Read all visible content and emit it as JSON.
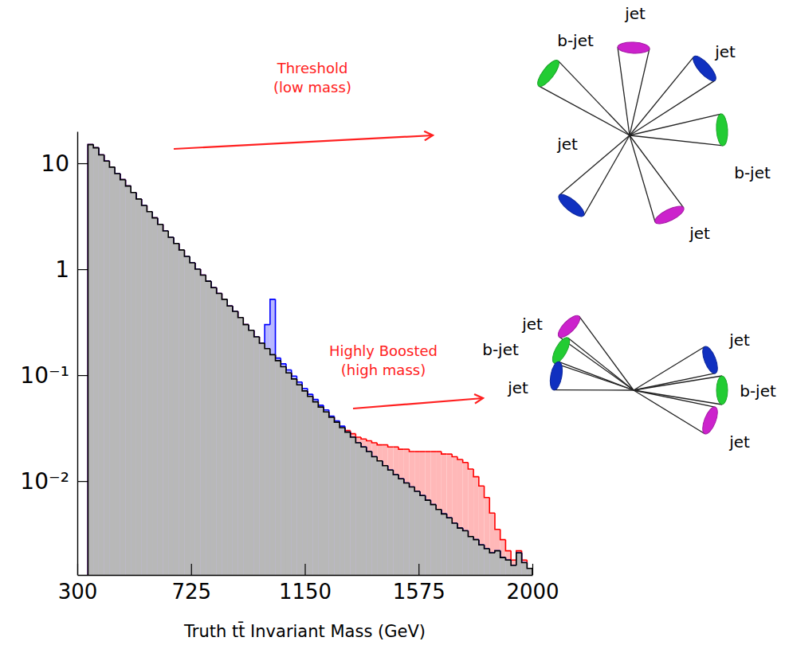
{
  "chart_data": {
    "type": "histogram",
    "x_label": "Truth tt̄ Invariant Mass (GeV)",
    "log": "y",
    "grid": false,
    "xlim": [
      300,
      2000
    ],
    "xticks": [
      300,
      725,
      1150,
      1575,
      2000
    ],
    "ylim": [
      0.0013,
      20
    ],
    "yticks": [
      {
        "value": 0.01,
        "label": "10⁻²"
      },
      {
        "value": 0.1,
        "label": "10⁻¹"
      },
      1,
      10
    ],
    "bins": [
      340,
      360,
      380,
      400,
      420,
      440,
      460,
      480,
      500,
      520,
      540,
      560,
      580,
      600,
      620,
      640,
      660,
      680,
      700,
      720,
      740,
      760,
      780,
      800,
      820,
      840,
      860,
      880,
      900,
      920,
      940,
      960,
      980,
      1000,
      1020,
      1040,
      1060,
      1080,
      1100,
      1120,
      1140,
      1160,
      1180,
      1200,
      1220,
      1240,
      1260,
      1280,
      1300,
      1320,
      1340,
      1360,
      1380,
      1400,
      1420,
      1440,
      1460,
      1480,
      1500,
      1520,
      1540,
      1560,
      1580,
      1600,
      1620,
      1640,
      1660,
      1680,
      1700,
      1720,
      1740,
      1760,
      1780,
      1800,
      1820,
      1840,
      1860,
      1880,
      1900,
      1920,
      1940,
      1960,
      1980,
      2000
    ],
    "series": [
      {
        "color": "#000000",
        "values": [
          15,
          14,
          12,
          10.5,
          9.2,
          8.0,
          7.0,
          6.1,
          5.3,
          4.6,
          4.0,
          3.5,
          3.05,
          2.65,
          2.3,
          2.0,
          1.75,
          1.52,
          1.32,
          1.15,
          1.0,
          0.88,
          0.77,
          0.67,
          0.59,
          0.52,
          0.45,
          0.4,
          0.35,
          0.3,
          0.265,
          0.23,
          0.2,
          0.178,
          0.156,
          0.137,
          0.12,
          0.105,
          0.092,
          0.081,
          0.071,
          0.063,
          0.056,
          0.05,
          0.045,
          0.04,
          0.036,
          0.032,
          0.029,
          0.026,
          0.023,
          0.021,
          0.019,
          0.017,
          0.0155,
          0.014,
          0.0127,
          0.0115,
          0.0105,
          0.0096,
          0.0088,
          0.008,
          0.0073,
          0.0066,
          0.006,
          0.0054,
          0.0049,
          0.0045,
          0.004,
          0.0036,
          0.0034,
          0.003,
          0.0028,
          0.0025,
          0.0023,
          0.0021,
          0.0022,
          0.0019,
          0.0018,
          0.0016,
          0.0021,
          0.0017,
          0.0015
        ]
      },
      {
        "color": "#0000ff",
        "values": [
          15,
          14,
          12,
          10.5,
          9.2,
          8.0,
          7.0,
          6.1,
          5.3,
          4.6,
          4.0,
          3.5,
          3.05,
          2.65,
          2.3,
          2.0,
          1.75,
          1.52,
          1.32,
          1.15,
          1.0,
          0.88,
          0.77,
          0.67,
          0.59,
          0.52,
          0.45,
          0.4,
          0.35,
          0.3,
          0.265,
          0.23,
          0.2,
          0.3,
          0.52,
          0.145,
          0.128,
          0.112,
          0.098,
          0.086,
          0.075,
          0.066,
          0.059,
          0.052,
          0.047,
          0.041,
          0.037,
          0.033,
          0.029,
          0.026,
          0.023,
          0.021,
          0.019,
          0.017,
          0.0155,
          0.014,
          0.0127,
          0.0115,
          0.0105,
          0.0096,
          0.0088,
          0.008,
          0.0073,
          0.0066,
          0.006,
          0.0054,
          0.0049,
          0.0045,
          0.004,
          0.0036,
          0.0034,
          0.003,
          0.0028,
          0.0025,
          0.0023,
          0.0021,
          0.0022,
          0.0019,
          0.0018,
          0.0016,
          0.0021,
          0.0017,
          0.0015
        ]
      },
      {
        "color": "#ff0000",
        "values": [
          15,
          14,
          12,
          10.5,
          9.2,
          8.0,
          7.0,
          6.1,
          5.3,
          4.6,
          4.0,
          3.5,
          3.05,
          2.65,
          2.3,
          2.0,
          1.75,
          1.52,
          1.32,
          1.15,
          1.0,
          0.88,
          0.77,
          0.67,
          0.59,
          0.52,
          0.45,
          0.4,
          0.35,
          0.3,
          0.265,
          0.23,
          0.2,
          0.178,
          0.156,
          0.137,
          0.12,
          0.105,
          0.092,
          0.081,
          0.071,
          0.063,
          0.056,
          0.05,
          0.045,
          0.04,
          0.036,
          0.032,
          0.03,
          0.028,
          0.026,
          0.025,
          0.024,
          0.023,
          0.022,
          0.022,
          0.021,
          0.021,
          0.02,
          0.02,
          0.019,
          0.019,
          0.019,
          0.019,
          0.019,
          0.019,
          0.018,
          0.018,
          0.017,
          0.016,
          0.015,
          0.013,
          0.011,
          0.009,
          0.007,
          0.005,
          0.0035,
          0.0028,
          0.0022,
          0.0018,
          0.0022,
          0.0018,
          0.0015
        ]
      }
    ],
    "annotations": [
      {
        "text": [
          "Threshold",
          "(low mass)"
        ],
        "diagram_labels": [
          "b-jet",
          "jet",
          "jet",
          "b-jet",
          "jet",
          "jet"
        ]
      },
      {
        "text": [
          "Highly Boosted",
          "(high mass)"
        ],
        "diagram_labels": [
          "jet",
          "b-jet",
          "jet",
          "jet",
          "b-jet",
          "jet"
        ]
      }
    ]
  }
}
